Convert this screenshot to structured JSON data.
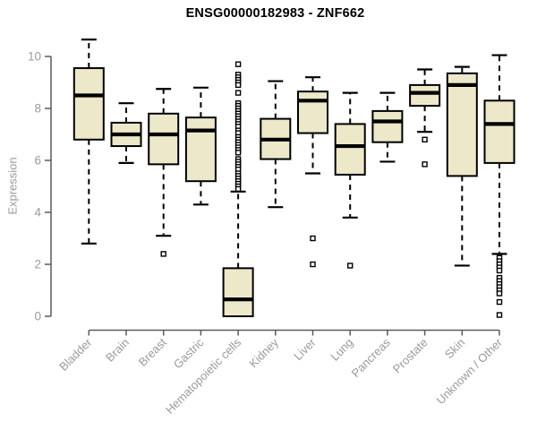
{
  "chart_data": {
    "type": "box",
    "title": "ENSG00000182983 - ZNF662",
    "ylabel": "Expression",
    "xlabel": "",
    "ylim": [
      0,
      10
    ],
    "yticks": [
      0,
      2,
      4,
      6,
      8,
      10
    ],
    "grid": false,
    "legend": "none",
    "categories": [
      "Bladder",
      "Brain",
      "Breast",
      "Gastric",
      "Hematopoietic cells",
      "Kidney",
      "Liver",
      "Lung",
      "Pancreas",
      "Prostate",
      "Skin",
      "Unknown / Other"
    ],
    "series": [
      {
        "name": "Bladder",
        "min": 2.8,
        "q1": 6.8,
        "median": 8.5,
        "q3": 9.55,
        "max": 10.65,
        "outliers": []
      },
      {
        "name": "Brain",
        "min": 5.9,
        "q1": 6.55,
        "median": 7.0,
        "q3": 7.45,
        "max": 8.2,
        "outliers": []
      },
      {
        "name": "Breast",
        "min": 3.1,
        "q1": 5.85,
        "median": 7.0,
        "q3": 7.8,
        "max": 8.75,
        "outliers": [
          2.4
        ]
      },
      {
        "name": "Gastric",
        "min": 4.3,
        "q1": 5.2,
        "median": 7.15,
        "q3": 7.65,
        "max": 8.8,
        "outliers": []
      },
      {
        "name": "Hematopoietic cells",
        "min": 0.0,
        "q1": 0.0,
        "median": 0.65,
        "q3": 1.85,
        "max": 4.8,
        "outliers": [
          9.7,
          9.3,
          9.2,
          9.1,
          9.0,
          8.9,
          8.6,
          8.2,
          8.1,
          8.0,
          7.9,
          7.8,
          7.7,
          7.6,
          7.5,
          7.4,
          7.3,
          7.15,
          7.05,
          6.9,
          6.8,
          6.7,
          6.6,
          6.5,
          6.4,
          6.3,
          6.05,
          5.95,
          5.85,
          5.75,
          5.65,
          5.5,
          5.4,
          5.3,
          5.2,
          5.1,
          5.0,
          4.9
        ]
      },
      {
        "name": "Kidney",
        "min": 4.2,
        "q1": 6.05,
        "median": 6.8,
        "q3": 7.6,
        "max": 9.05,
        "outliers": []
      },
      {
        "name": "Liver",
        "min": 5.5,
        "q1": 7.05,
        "median": 8.3,
        "q3": 8.65,
        "max": 9.2,
        "outliers": [
          3.0,
          2.0
        ]
      },
      {
        "name": "Lung",
        "min": 3.8,
        "q1": 5.45,
        "median": 6.55,
        "q3": 7.4,
        "max": 8.6,
        "outliers": [
          1.95
        ]
      },
      {
        "name": "Pancreas",
        "min": 5.95,
        "q1": 6.7,
        "median": 7.5,
        "q3": 7.9,
        "max": 8.6,
        "outliers": []
      },
      {
        "name": "Prostate",
        "min": 7.1,
        "q1": 8.1,
        "median": 8.6,
        "q3": 8.9,
        "max": 9.5,
        "outliers": [
          6.8,
          5.85
        ]
      },
      {
        "name": "Skin",
        "min": 1.95,
        "q1": 5.4,
        "median": 8.9,
        "q3": 9.35,
        "max": 9.6,
        "outliers": []
      },
      {
        "name": "Unknown / Other",
        "min": 2.4,
        "q1": 5.9,
        "median": 7.4,
        "q3": 8.3,
        "max": 10.05,
        "outliers": [
          2.25,
          2.12,
          2.0,
          1.88,
          1.76,
          1.48,
          1.36,
          1.24,
          1.12,
          1.0,
          0.88,
          0.55,
          0.05
        ]
      }
    ]
  },
  "colors": {
    "background": "#FFFFFF",
    "box_fill": "#EDE8C9",
    "box_stroke": "#000000",
    "median": "#000000",
    "whisker": "#000000",
    "outlier_stroke": "#000000",
    "outlier_fill": "#FFFFFF",
    "axis_line": "#5A5A5A",
    "tick_label": "#9A9A9A",
    "title": "#000000"
  }
}
